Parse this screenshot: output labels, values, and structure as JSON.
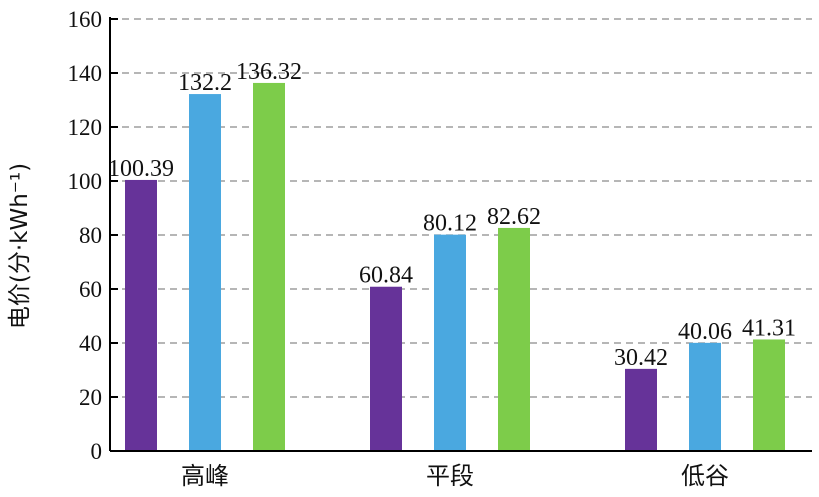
{
  "chart_data": {
    "type": "bar",
    "title": "",
    "xlabel": "",
    "ylabel": "电价(分·kWh⁻¹)",
    "categories": [
      "高峰",
      "平段",
      "低谷"
    ],
    "series": [
      {
        "values": [
          100.39,
          60.84,
          30.42
        ],
        "color": "#663399"
      },
      {
        "values": [
          132.2,
          80.12,
          40.06
        ],
        "color": "#4AA8E0"
      },
      {
        "values": [
          136.32,
          82.62,
          41.31
        ],
        "color": "#7DCC4A"
      }
    ],
    "data_labels": [
      [
        "100.39",
        "60.84",
        "30.42"
      ],
      [
        "132.2",
        "80.12",
        "40.06"
      ],
      [
        "136.32",
        "82.62",
        "41.31"
      ]
    ],
    "ylim": [
      0,
      160
    ],
    "yticks": [
      "0",
      "20",
      "40",
      "60",
      "80",
      "100",
      "120",
      "140",
      "160"
    ],
    "grid": "horizontal dashed",
    "legend": "none"
  }
}
